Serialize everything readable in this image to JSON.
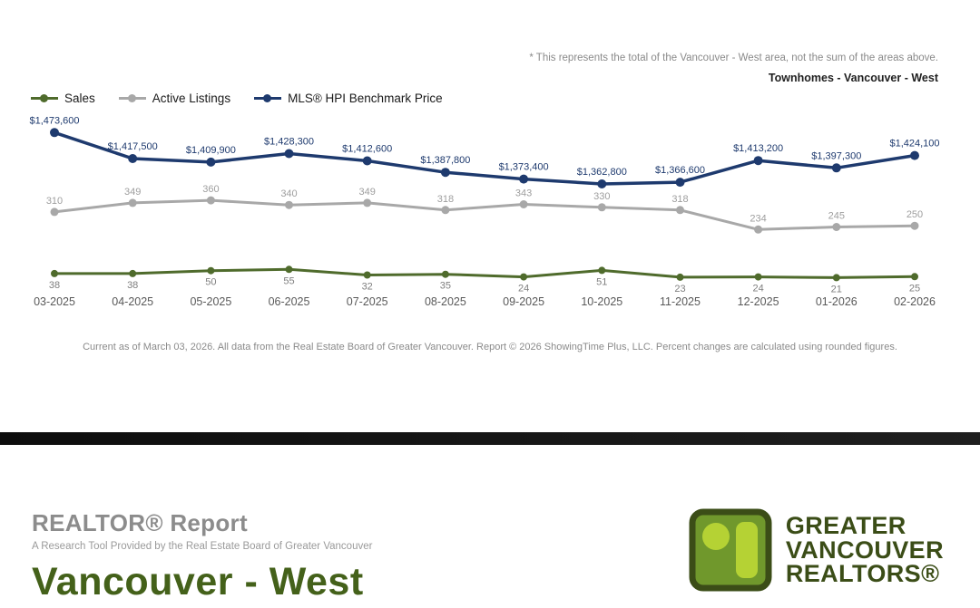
{
  "note": "* This represents the total of the Vancouver - West area, not the sum of the areas above.",
  "chart_title": "Townhomes - Vancouver - West",
  "legend": [
    {
      "label": "Sales",
      "color": "#4f6b2c"
    },
    {
      "label": "Active Listings",
      "color": "#a8a8a8"
    },
    {
      "label": "MLS® HPI Benchmark Price",
      "color": "#1e3a6e"
    }
  ],
  "chart_data": {
    "type": "line",
    "title": "Townhomes - Vancouver - West",
    "legend_position": "top-left",
    "grid": false,
    "categories": [
      "03-2025",
      "04-2025",
      "05-2025",
      "06-2025",
      "07-2025",
      "08-2025",
      "09-2025",
      "10-2025",
      "11-2025",
      "12-2025",
      "01-2026",
      "02-2026"
    ],
    "series": [
      {
        "name": "Sales",
        "color": "#4f6b2c",
        "label_color": "#7f7f7f",
        "values": [
          38,
          38,
          50,
          55,
          32,
          35,
          24,
          51,
          23,
          24,
          21,
          25
        ]
      },
      {
        "name": "Active Listings",
        "color": "#a8a8a8",
        "label_color": "#9e9e9e",
        "values": [
          310,
          349,
          360,
          340,
          349,
          318,
          343,
          330,
          318,
          234,
          245,
          250
        ]
      },
      {
        "name": "MLS® HPI Benchmark Price",
        "color": "#1e3a6e",
        "label_color": "#1e3a6e",
        "values": [
          1473600,
          1417500,
          1409900,
          1428300,
          1412600,
          1387800,
          1373400,
          1362800,
          1366600,
          1413200,
          1397300,
          1424100
        ],
        "labels": [
          "$1,473,600",
          "$1,417,500",
          "$1,409,900",
          "$1,428,300",
          "$1,412,600",
          "$1,387,800",
          "$1,373,400",
          "$1,362,800",
          "$1,366,600",
          "$1,413,200",
          "$1,397,300",
          "$1,424,100"
        ]
      }
    ]
  },
  "footnote": "Current as of March 03, 2026. All data from the Real Estate Board of Greater Vancouver.  Report © 2026 ShowingTime Plus, LLC. Percent changes are calculated using rounded figures.",
  "report": {
    "title": "REALTOR® Report",
    "subtitle": "A Research Tool Provided by the Real Estate Board of Greater Vancouver",
    "area": "Vancouver - West"
  },
  "logo": {
    "line1": "GREATER",
    "line2": "VANCOUVER",
    "line3": "REALTORS®",
    "text_color": "#3b4d17",
    "icon_fill": "#70982c",
    "icon_accent": "#b5d234",
    "icon_border": "#3b4d17"
  }
}
